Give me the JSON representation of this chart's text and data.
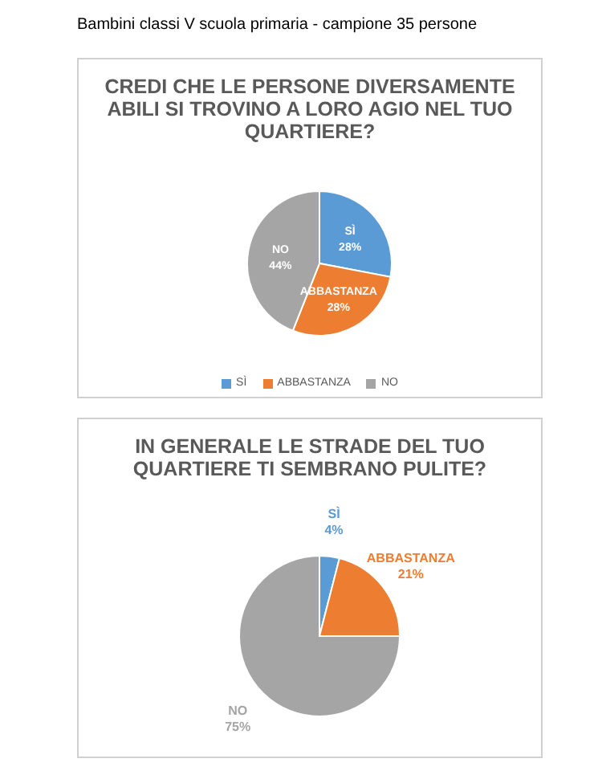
{
  "chart_data": [
    {
      "type": "pie",
      "title": "CREDI CHE LE PERSONE DIVERSAMENTE ABILI SI TROVINO A LORO AGIO NEL TUO QUARTIERE?",
      "annotations": [
        "Bambini classi V scuola primaria - campione 35 persone"
      ],
      "categories": [
        "SÌ",
        "ABBASTANZA",
        "NO"
      ],
      "values": [
        28,
        28,
        44
      ],
      "value_labels": [
        "28%",
        "28%",
        "44%"
      ],
      "colors": [
        "#5b9bd5",
        "#ed7d31",
        "#a5a5a5"
      ],
      "legend": "bottom"
    },
    {
      "type": "pie",
      "title": "IN GENERALE LE STRADE DEL TUO QUARTIERE TI SEMBRANO PULITE?",
      "categories": [
        "SÌ",
        "ABBASTANZA",
        "NO"
      ],
      "values": [
        4,
        21,
        75
      ],
      "value_labels": [
        "4%",
        "21%",
        "75%"
      ],
      "colors": [
        "#5b9bd5",
        "#ed7d31",
        "#a5a5a5"
      ]
    }
  ]
}
